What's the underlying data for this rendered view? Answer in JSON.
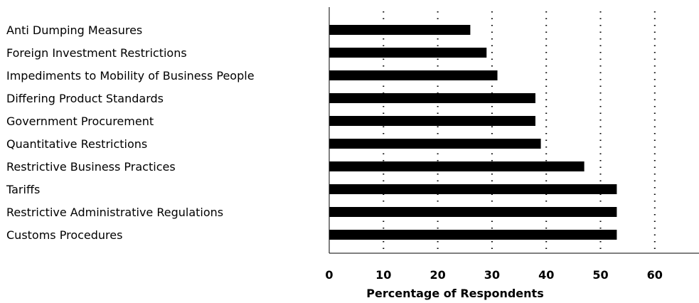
{
  "chart_data": {
    "type": "bar",
    "orientation": "horizontal",
    "categories": [
      "Anti Dumping Measures",
      "Foreign Investment Restrictions",
      "Impediments to Mobility of Business People",
      "Differing Product Standards",
      "Government Procurement",
      "Quantitative Restrictions",
      "Restrictive Business Practices",
      "Tariffs",
      "Restrictive Administrative Regulations",
      "Customs Procedures"
    ],
    "values": [
      26,
      29,
      31,
      38,
      38,
      39,
      47,
      53,
      53,
      53
    ],
    "xlabel": "Percentage of Respondents",
    "ylabel": "",
    "xlim": [
      0,
      69
    ],
    "xticks": [
      "0",
      "10",
      "20",
      "30",
      "40",
      "50",
      "60"
    ],
    "grid": "vertical dotted",
    "bar_color": "#000000"
  }
}
